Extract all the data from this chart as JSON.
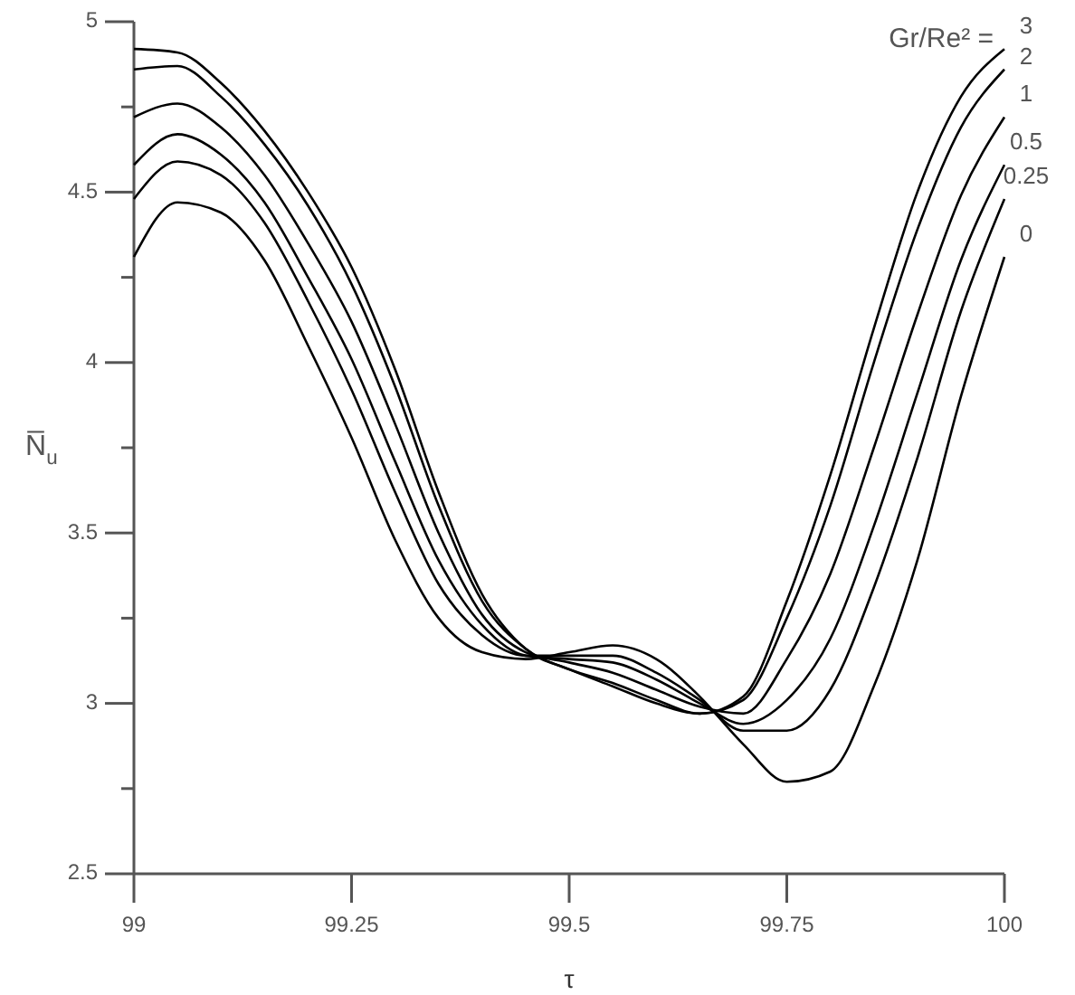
{
  "chart_data": {
    "type": "line",
    "xlabel": "τ",
    "ylabel": "N̅$_{u}$",
    "legend_title": "Gr/Re² =",
    "x": [
      99,
      99.05,
      99.1,
      99.15,
      99.2,
      99.25,
      99.3,
      99.35,
      99.4,
      99.45,
      99.5,
      99.55,
      99.6,
      99.65,
      99.7,
      99.75,
      99.8,
      99.85,
      99.9,
      99.95,
      100
    ],
    "series": [
      {
        "name": "3",
        "color": "#000000",
        "values": [
          4.92,
          4.91,
          4.82,
          4.68,
          4.5,
          4.28,
          3.98,
          3.62,
          3.32,
          3.16,
          3.1,
          3.05,
          3.0,
          2.97,
          3.02,
          3.3,
          3.67,
          4.1,
          4.5,
          4.78,
          4.92
        ]
      },
      {
        "name": "2",
        "color": "#000000",
        "values": [
          4.86,
          4.87,
          4.78,
          4.64,
          4.46,
          4.23,
          3.93,
          3.58,
          3.3,
          3.16,
          3.1,
          3.06,
          3.01,
          2.97,
          3.01,
          3.25,
          3.58,
          4.0,
          4.39,
          4.69,
          4.86
        ]
      },
      {
        "name": "1",
        "color": "#000000",
        "values": [
          4.72,
          4.76,
          4.69,
          4.55,
          4.35,
          4.12,
          3.82,
          3.5,
          3.26,
          3.15,
          3.12,
          3.09,
          3.04,
          2.99,
          2.97,
          3.13,
          3.38,
          3.75,
          4.14,
          4.49,
          4.72
        ]
      },
      {
        "name": "0.5",
        "color": "#000000",
        "values": [
          4.58,
          4.67,
          4.61,
          4.47,
          4.25,
          4.01,
          3.71,
          3.42,
          3.23,
          3.14,
          3.13,
          3.12,
          3.07,
          3.0,
          2.94,
          3.01,
          3.19,
          3.52,
          3.91,
          4.3,
          4.58
        ]
      },
      {
        "name": "0.25",
        "color": "#000000",
        "values": [
          4.48,
          4.59,
          4.55,
          4.41,
          4.18,
          3.92,
          3.62,
          3.35,
          3.2,
          3.14,
          3.14,
          3.14,
          3.09,
          3.01,
          2.92,
          2.92,
          3.04,
          3.34,
          3.72,
          4.15,
          4.48
        ]
      },
      {
        "name": "0",
        "color": "#000000",
        "values": [
          4.31,
          4.47,
          4.44,
          4.3,
          4.05,
          3.78,
          3.48,
          3.25,
          3.15,
          3.13,
          3.15,
          3.17,
          3.13,
          3.02,
          2.88,
          2.77,
          2.8,
          3.05,
          3.42,
          3.9,
          4.31
        ]
      }
    ],
    "xlim": [
      99,
      100
    ],
    "xticks": [
      99,
      99.25,
      99.5,
      99.75,
      100
    ],
    "ylim": [
      2.5,
      5
    ],
    "yticks": [
      2.5,
      {
        "value": 2.75,
        "label": null
      },
      3,
      {
        "value": 3.25,
        "label": null
      },
      3.5,
      {
        "value": 3.75,
        "label": null
      },
      4,
      {
        "value": 4.25,
        "label": null
      },
      4.5,
      {
        "value": 4.75,
        "label": null
      },
      5
    ],
    "grid": false,
    "marker": "none",
    "line_style": "solid"
  }
}
